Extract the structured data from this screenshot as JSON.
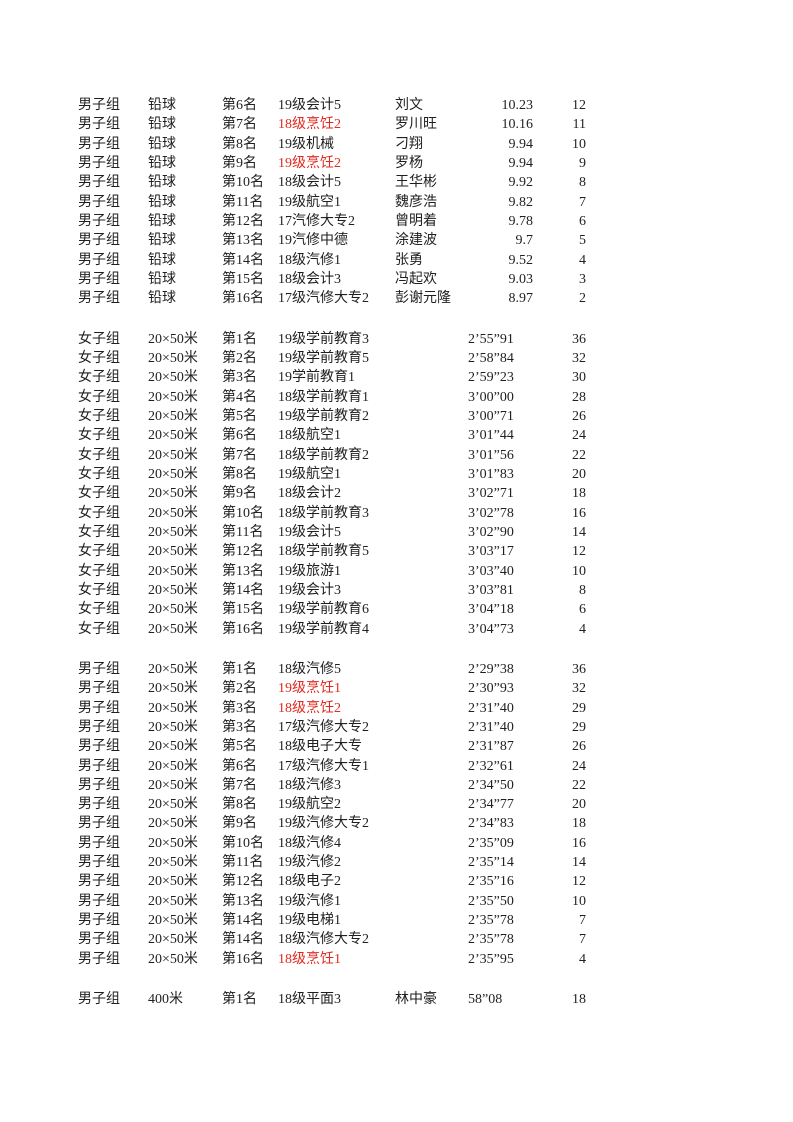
{
  "page": {
    "background_color": "#ffffff",
    "text_color": "#1f1f1f",
    "highlight_red_color": "#e0291f"
  },
  "table": {
    "columns": [
      "group",
      "event",
      "rank",
      "team",
      "name",
      "result",
      "points"
    ],
    "sections": [
      {
        "id": "men-shot-put",
        "result_align": "right",
        "rows": [
          {
            "group": "男子组",
            "event": "铅球",
            "rank": "第6名",
            "team": "19级会计5",
            "team_red": false,
            "name": "刘文",
            "result": "10.23",
            "points": "12"
          },
          {
            "group": "男子组",
            "event": "铅球",
            "rank": "第7名",
            "team": "18级烹饪2",
            "team_red": true,
            "name": "罗川旺",
            "result": "10.16",
            "points": "11"
          },
          {
            "group": "男子组",
            "event": "铅球",
            "rank": "第8名",
            "team": "19级机械",
            "team_red": false,
            "name": "刁翔",
            "result": "9.94",
            "points": "10"
          },
          {
            "group": "男子组",
            "event": "铅球",
            "rank": "第9名",
            "team": "19级烹饪2",
            "team_red": true,
            "name": "罗杨",
            "result": "9.94",
            "points": "9"
          },
          {
            "group": "男子组",
            "event": "铅球",
            "rank": "第10名",
            "team": "18级会计5",
            "team_red": false,
            "name": "王华彬",
            "result": "9.92",
            "points": "8"
          },
          {
            "group": "男子组",
            "event": "铅球",
            "rank": "第11名",
            "team": "19级航空1",
            "team_red": false,
            "name": "魏彦浩",
            "result": "9.82",
            "points": "7"
          },
          {
            "group": "男子组",
            "event": "铅球",
            "rank": "第12名",
            "team": "17汽修大专2",
            "team_red": false,
            "name": "曾明着",
            "result": "9.78",
            "points": "6"
          },
          {
            "group": "男子组",
            "event": "铅球",
            "rank": "第13名",
            "team": "19汽修中德",
            "team_red": false,
            "name": "涂建波",
            "result": "9.7",
            "points": "5"
          },
          {
            "group": "男子组",
            "event": "铅球",
            "rank": "第14名",
            "team": "18级汽修1",
            "team_red": false,
            "name": "张勇",
            "result": "9.52",
            "points": "4"
          },
          {
            "group": "男子组",
            "event": "铅球",
            "rank": "第15名",
            "team": "18级会计3",
            "team_red": false,
            "name": "冯起欢",
            "result": "9.03",
            "points": "3"
          },
          {
            "group": "男子组",
            "event": "铅球",
            "rank": "第16名",
            "team": "17级汽修大专2",
            "team_red": false,
            "name": "彭谢元隆",
            "result": "8.97",
            "points": "2"
          }
        ]
      },
      {
        "id": "women-20x50m-relay",
        "result_align": "left",
        "rows": [
          {
            "group": "女子组",
            "event": "20×50米",
            "rank": "第1名",
            "team": "19级学前教育3",
            "team_red": false,
            "name": "",
            "result": "2’55”91",
            "points": "36"
          },
          {
            "group": "女子组",
            "event": "20×50米",
            "rank": "第2名",
            "team": "19级学前教育5",
            "team_red": false,
            "name": "",
            "result": "2’58”84",
            "points": "32"
          },
          {
            "group": "女子组",
            "event": "20×50米",
            "rank": "第3名",
            "team": "19学前教育1",
            "team_red": false,
            "name": "",
            "result": "2’59”23",
            "points": "30"
          },
          {
            "group": "女子组",
            "event": "20×50米",
            "rank": "第4名",
            "team": "18级学前教育1",
            "team_red": false,
            "name": "",
            "result": "3’00”00",
            "points": "28"
          },
          {
            "group": "女子组",
            "event": "20×50米",
            "rank": "第5名",
            "team": "19级学前教育2",
            "team_red": false,
            "name": "",
            "result": "3’00”71",
            "points": "26"
          },
          {
            "group": "女子组",
            "event": "20×50米",
            "rank": "第6名",
            "team": "18级航空1",
            "team_red": false,
            "name": "",
            "result": "3’01”44",
            "points": "24"
          },
          {
            "group": "女子组",
            "event": "20×50米",
            "rank": "第7名",
            "team": "18级学前教育2",
            "team_red": false,
            "name": "",
            "result": "3’01”56",
            "points": "22"
          },
          {
            "group": "女子组",
            "event": "20×50米",
            "rank": "第8名",
            "team": "19级航空1",
            "team_red": false,
            "name": "",
            "result": "3’01”83",
            "points": "20"
          },
          {
            "group": "女子组",
            "event": "20×50米",
            "rank": "第9名",
            "team": "18级会计2",
            "team_red": false,
            "name": "",
            "result": "3’02”71",
            "points": "18"
          },
          {
            "group": "女子组",
            "event": "20×50米",
            "rank": "第10名",
            "team": "18级学前教育3",
            "team_red": false,
            "name": "",
            "result": "3’02”78",
            "points": "16"
          },
          {
            "group": "女子组",
            "event": "20×50米",
            "rank": "第11名",
            "team": "19级会计5",
            "team_red": false,
            "name": "",
            "result": "3’02”90",
            "points": "14"
          },
          {
            "group": "女子组",
            "event": "20×50米",
            "rank": "第12名",
            "team": "18级学前教育5",
            "team_red": false,
            "name": "",
            "result": "3’03”17",
            "points": "12"
          },
          {
            "group": "女子组",
            "event": "20×50米",
            "rank": "第13名",
            "team": "19级旅游1",
            "team_red": false,
            "name": "",
            "result": "3’03”40",
            "points": "10"
          },
          {
            "group": "女子组",
            "event": "20×50米",
            "rank": "第14名",
            "team": "19级会计3",
            "team_red": false,
            "name": "",
            "result": "3’03”81",
            "points": "8"
          },
          {
            "group": "女子组",
            "event": "20×50米",
            "rank": "第15名",
            "team": "19级学前教育6",
            "team_red": false,
            "name": "",
            "result": "3’04”18",
            "points": "6"
          },
          {
            "group": "女子组",
            "event": "20×50米",
            "rank": "第16名",
            "team": "19级学前教育4",
            "team_red": false,
            "name": "",
            "result": "3’04”73",
            "points": "4"
          }
        ]
      },
      {
        "id": "men-20x50m-relay",
        "result_align": "left",
        "rows": [
          {
            "group": "男子组",
            "event": "20×50米",
            "rank": "第1名",
            "team": "18级汽修5",
            "team_red": false,
            "name": "",
            "result": "2’29”38",
            "points": "36"
          },
          {
            "group": "男子组",
            "event": "20×50米",
            "rank": "第2名",
            "team": "19级烹饪1",
            "team_red": true,
            "name": "",
            "result": "2’30”93",
            "points": "32"
          },
          {
            "group": "男子组",
            "event": "20×50米",
            "rank": "第3名",
            "team": "18级烹饪2",
            "team_red": true,
            "name": "",
            "result": "2’31”40",
            "points": "29"
          },
          {
            "group": "男子组",
            "event": "20×50米",
            "rank": "第3名",
            "team": "17级汽修大专2",
            "team_red": false,
            "name": "",
            "result": "2’31”40",
            "points": "29"
          },
          {
            "group": "男子组",
            "event": "20×50米",
            "rank": "第5名",
            "team": "18级电子大专",
            "team_red": false,
            "name": "",
            "result": "2’31”87",
            "points": "26"
          },
          {
            "group": "男子组",
            "event": "20×50米",
            "rank": "第6名",
            "team": "17级汽修大专1",
            "team_red": false,
            "name": "",
            "result": "2’32”61",
            "points": "24"
          },
          {
            "group": "男子组",
            "event": "20×50米",
            "rank": "第7名",
            "team": "18级汽修3",
            "team_red": false,
            "name": "",
            "result": "2’34”50",
            "points": "22"
          },
          {
            "group": "男子组",
            "event": "20×50米",
            "rank": "第8名",
            "team": "19级航空2",
            "team_red": false,
            "name": "",
            "result": "2’34”77",
            "points": "20"
          },
          {
            "group": "男子组",
            "event": "20×50米",
            "rank": "第9名",
            "team": "19级汽修大专2",
            "team_red": false,
            "name": "",
            "result": "2’34”83",
            "points": "18"
          },
          {
            "group": "男子组",
            "event": "20×50米",
            "rank": "第10名",
            "team": "18级汽修4",
            "team_red": false,
            "name": "",
            "result": "2’35”09",
            "points": "16"
          },
          {
            "group": "男子组",
            "event": "20×50米",
            "rank": "第11名",
            "team": "19级汽修2",
            "team_red": false,
            "name": "",
            "result": "2’35”14",
            "points": "14"
          },
          {
            "group": "男子组",
            "event": "20×50米",
            "rank": "第12名",
            "team": "18级电子2",
            "team_red": false,
            "name": "",
            "result": "2’35”16",
            "points": "12"
          },
          {
            "group": "男子组",
            "event": "20×50米",
            "rank": "第13名",
            "team": "19级汽修1",
            "team_red": false,
            "name": "",
            "result": "2’35”50",
            "points": "10"
          },
          {
            "group": "男子组",
            "event": "20×50米",
            "rank": "第14名",
            "team": "19级电梯1",
            "team_red": false,
            "name": "",
            "result": "2’35”78",
            "points": "7"
          },
          {
            "group": "男子组",
            "event": "20×50米",
            "rank": "第14名",
            "team": "18级汽修大专2",
            "team_red": false,
            "name": "",
            "result": "2’35”78",
            "points": "7"
          },
          {
            "group": "男子组",
            "event": "20×50米",
            "rank": "第16名",
            "team": "18级烹饪1",
            "team_red": true,
            "name": "",
            "result": "2’35”95",
            "points": "4"
          }
        ]
      },
      {
        "id": "men-400m",
        "result_align": "left",
        "rows": [
          {
            "group": "男子组",
            "event": "400米",
            "rank": "第1名",
            "team": "18级平面3",
            "team_red": false,
            "name": "林中豪",
            "result": "58”08",
            "points": "18"
          }
        ]
      }
    ]
  }
}
